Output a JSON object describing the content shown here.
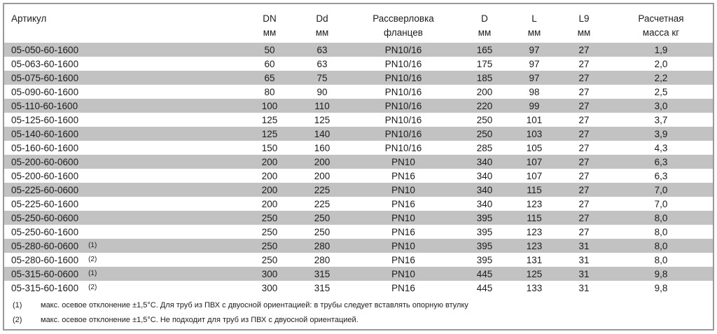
{
  "colors": {
    "stripe": "#c2c2c2",
    "border": "#999999",
    "text": "#1c1c1c"
  },
  "table": {
    "columns": [
      {
        "line1": "Артикул",
        "line2": ""
      },
      {
        "line1": "DN",
        "line2": "мм"
      },
      {
        "line1": "Dd",
        "line2": "мм"
      },
      {
        "line1": "Рассверловка",
        "line2": "фланцев"
      },
      {
        "line1": "D",
        "line2": "мм"
      },
      {
        "line1": "L",
        "line2": "мм"
      },
      {
        "line1": "L9",
        "line2": "мм"
      },
      {
        "line1": "Расчетная",
        "line2": "масса кг"
      }
    ],
    "rows": [
      {
        "article": "05-050-60-1600",
        "note": "",
        "dn": "50",
        "dd": "63",
        "pn": "PN10/16",
        "d": "165",
        "l": "97",
        "l9": "27",
        "mass": "1,9"
      },
      {
        "article": "05-063-60-1600",
        "note": "",
        "dn": "60",
        "dd": "63",
        "pn": "PN10/16",
        "d": "175",
        "l": "97",
        "l9": "27",
        "mass": "2,0"
      },
      {
        "article": "05-075-60-1600",
        "note": "",
        "dn": "65",
        "dd": "75",
        "pn": "PN10/16",
        "d": "185",
        "l": "97",
        "l9": "27",
        "mass": "2,2"
      },
      {
        "article": "05-090-60-1600",
        "note": "",
        "dn": "80",
        "dd": "90",
        "pn": "PN10/16",
        "d": "200",
        "l": "98",
        "l9": "27",
        "mass": "2,5"
      },
      {
        "article": "05-110-60-1600",
        "note": "",
        "dn": "100",
        "dd": "110",
        "pn": "PN10/16",
        "d": "220",
        "l": "99",
        "l9": "27",
        "mass": "3,0"
      },
      {
        "article": "05-125-60-1600",
        "note": "",
        "dn": "125",
        "dd": "125",
        "pn": "PN10/16",
        "d": "250",
        "l": "101",
        "l9": "27",
        "mass": "3,7"
      },
      {
        "article": "05-140-60-1600",
        "note": "",
        "dn": "125",
        "dd": "140",
        "pn": "PN10/16",
        "d": "250",
        "l": "103",
        "l9": "27",
        "mass": "3,9"
      },
      {
        "article": "05-160-60-1600",
        "note": "",
        "dn": "150",
        "dd": "160",
        "pn": "PN10/16",
        "d": "285",
        "l": "105",
        "l9": "27",
        "mass": "4,3"
      },
      {
        "article": "05-200-60-0600",
        "note": "",
        "dn": "200",
        "dd": "200",
        "pn": "PN10",
        "d": "340",
        "l": "107",
        "l9": "27",
        "mass": "6,3"
      },
      {
        "article": "05-200-60-1600",
        "note": "",
        "dn": "200",
        "dd": "200",
        "pn": "PN16",
        "d": "340",
        "l": "107",
        "l9": "27",
        "mass": "6,3"
      },
      {
        "article": "05-225-60-0600",
        "note": "",
        "dn": "200",
        "dd": "225",
        "pn": "PN10",
        "d": "340",
        "l": "115",
        "l9": "27",
        "mass": "7,0"
      },
      {
        "article": "05-225-60-1600",
        "note": "",
        "dn": "200",
        "dd": "225",
        "pn": "PN16",
        "d": "340",
        "l": "123",
        "l9": "27",
        "mass": "7,0"
      },
      {
        "article": "05-250-60-0600",
        "note": "",
        "dn": "250",
        "dd": "250",
        "pn": "PN10",
        "d": "395",
        "l": "115",
        "l9": "27",
        "mass": "8,0"
      },
      {
        "article": "05-250-60-1600",
        "note": "",
        "dn": "250",
        "dd": "250",
        "pn": "PN16",
        "d": "395",
        "l": "123",
        "l9": "27",
        "mass": "8,0"
      },
      {
        "article": "05-280-60-0600",
        "note": "(1)",
        "dn": "250",
        "dd": "280",
        "pn": "PN10",
        "d": "395",
        "l": "123",
        "l9": "31",
        "mass": "8,0"
      },
      {
        "article": "05-280-60-1600",
        "note": "(2)",
        "dn": "250",
        "dd": "280",
        "pn": "PN16",
        "d": "395",
        "l": "131",
        "l9": "31",
        "mass": "8,0"
      },
      {
        "article": "05-315-60-0600",
        "note": "(1)",
        "dn": "300",
        "dd": "315",
        "pn": "PN10",
        "d": "445",
        "l": "125",
        "l9": "31",
        "mass": "9,8"
      },
      {
        "article": "05-315-60-1600",
        "note": "(2)",
        "dn": "300",
        "dd": "315",
        "pn": "PN16",
        "d": "445",
        "l": "133",
        "l9": "31",
        "mass": "9,8"
      }
    ]
  },
  "footnotes": [
    {
      "marker": "(1)",
      "text": "макс. осевое отклонение ±1,5°С. Для труб из ПВХ с двуосной ориентацией: в трубы следует вставлять опорную втулку"
    },
    {
      "marker": "(2)",
      "text": "макс. осевое отклонение ±1,5°С. Не подходит для труб из ПВХ с двуосной ориентацией."
    }
  ]
}
